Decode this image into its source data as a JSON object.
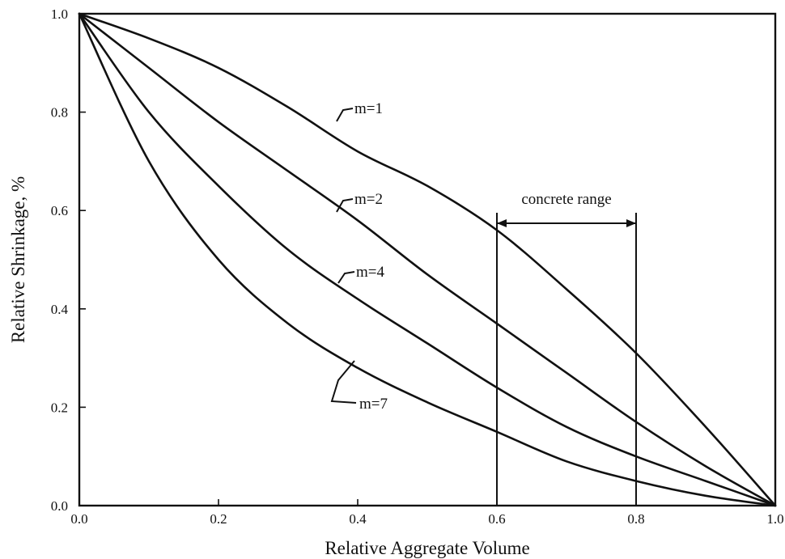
{
  "chart_data": {
    "type": "line",
    "xlabel": "Relative Aggregate Volume",
    "ylabel": "Relative Shrinkage, %",
    "xlim": [
      0.0,
      1.0
    ],
    "ylim": [
      0.0,
      1.0
    ],
    "xticks": [
      "0.0",
      "0.2",
      "0.4",
      "0.6",
      "0.8",
      "1.0"
    ],
    "yticks": [
      "0.0",
      "0.2",
      "0.4",
      "0.6",
      "0.8",
      "1.0"
    ],
    "grid": false,
    "legend": "none",
    "x": [
      0.0,
      0.1,
      0.2,
      0.3,
      0.4,
      0.5,
      0.6,
      0.7,
      0.8,
      0.9,
      1.0
    ],
    "series": [
      {
        "name": "m=1",
        "values": [
          1.0,
          0.95,
          0.89,
          0.81,
          0.72,
          0.65,
          0.56,
          0.44,
          0.31,
          0.16,
          0.0
        ]
      },
      {
        "name": "m=2",
        "values": [
          1.0,
          0.89,
          0.78,
          0.68,
          0.58,
          0.47,
          0.37,
          0.27,
          0.17,
          0.08,
          0.0
        ]
      },
      {
        "name": "m=4",
        "values": [
          1.0,
          0.8,
          0.65,
          0.52,
          0.42,
          0.33,
          0.24,
          0.16,
          0.1,
          0.05,
          0.0
        ]
      },
      {
        "name": "m=7",
        "values": [
          1.0,
          0.7,
          0.5,
          0.37,
          0.28,
          0.21,
          0.15,
          0.09,
          0.05,
          0.02,
          0.0
        ]
      }
    ],
    "annotations": {
      "range_label": "concrete range",
      "range_x": [
        0.6,
        0.8
      ]
    }
  }
}
